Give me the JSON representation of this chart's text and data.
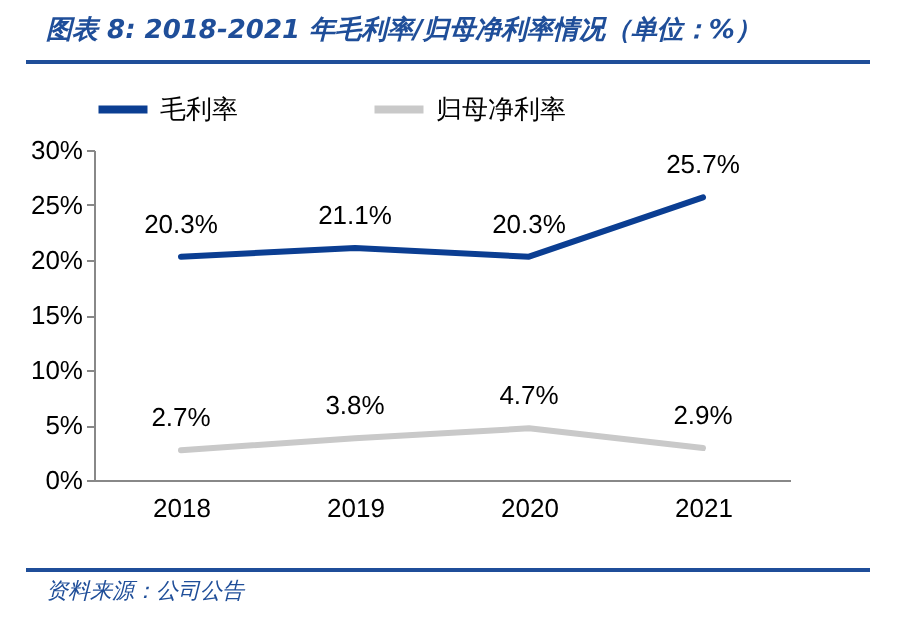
{
  "chart_data": {
    "type": "line",
    "title": "图表 8:  2018-2021 年毛利率/归母净利率情况（单位：%）",
    "annotations": [
      "资料来源：公司公告"
    ],
    "categories": [
      "2018",
      "2019",
      "2020",
      "2021"
    ],
    "ylim": [
      0,
      30
    ],
    "yticks": [
      {
        "value": 0,
        "label": "0%"
      },
      {
        "value": 5,
        "label": "5%"
      },
      {
        "value": 10,
        "label": "10%"
      },
      {
        "value": 15,
        "label": "15%"
      },
      {
        "value": 20,
        "label": "20%"
      },
      {
        "value": 25,
        "label": "25%"
      },
      {
        "value": 30,
        "label": "30%"
      }
    ],
    "grid": false,
    "legend": "top",
    "marker": "none",
    "line_style": "solid",
    "series": [
      {
        "name": "毛利率",
        "color": "#0b3e92",
        "values": [
          20.3,
          21.1,
          20.3,
          25.7
        ],
        "value_labels": [
          "20.3%",
          "21.1%",
          "20.3%",
          "25.7%"
        ]
      },
      {
        "name": "归母净利率",
        "color": "#c9c9c9",
        "values": [
          2.7,
          3.8,
          4.7,
          2.9
        ],
        "value_labels": [
          "2.7%",
          "3.8%",
          "4.7%",
          "2.9%"
        ]
      }
    ]
  }
}
